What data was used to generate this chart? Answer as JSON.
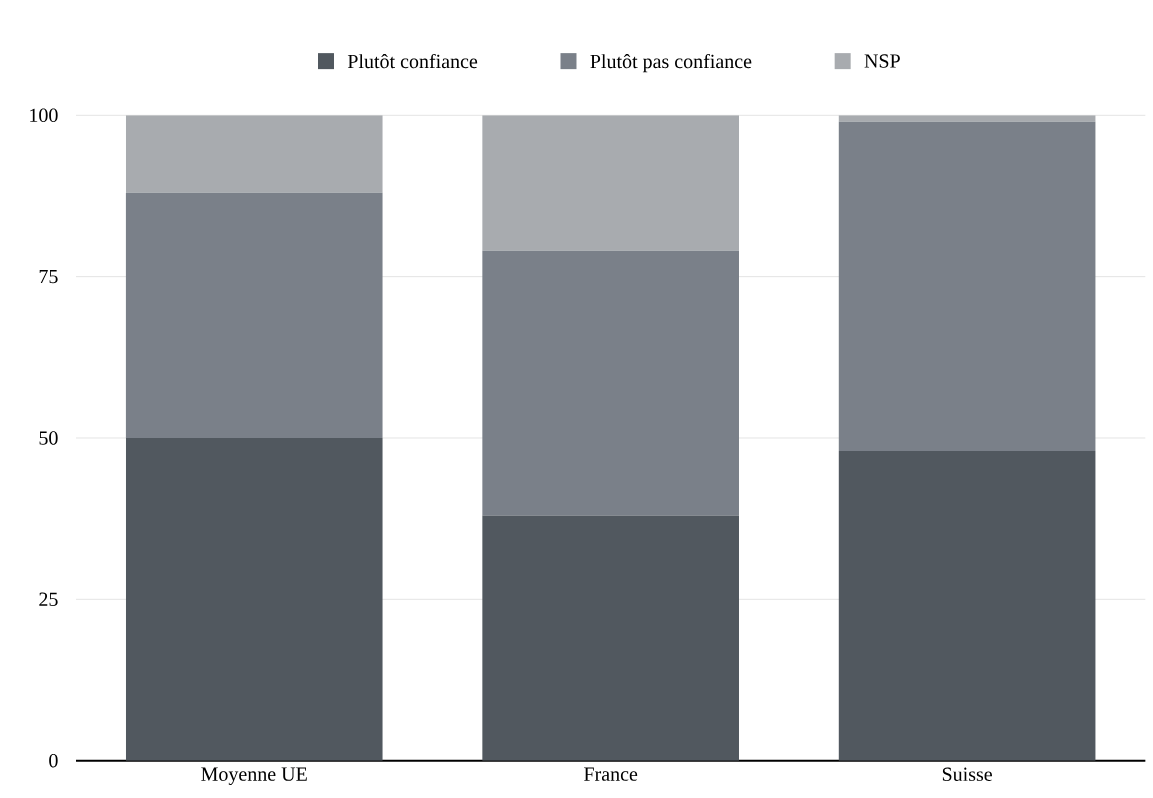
{
  "chart_data": {
    "type": "bar",
    "stacked": true,
    "categories": [
      "Moyenne UE",
      "France",
      "Suisse"
    ],
    "series": [
      {
        "name": "Plutôt confiance",
        "color": "#51585f",
        "values": [
          50,
          38,
          48
        ]
      },
      {
        "name": "Plutôt pas confiance",
        "color": "#7a8089",
        "values": [
          38,
          41,
          51
        ]
      },
      {
        "name": "NSP",
        "color": "#a8abaf",
        "values": [
          12,
          21,
          1
        ]
      }
    ],
    "ylim": [
      0,
      100
    ],
    "yticks": [
      0,
      25,
      50,
      75,
      100
    ],
    "grid": "y",
    "legend": "top"
  }
}
